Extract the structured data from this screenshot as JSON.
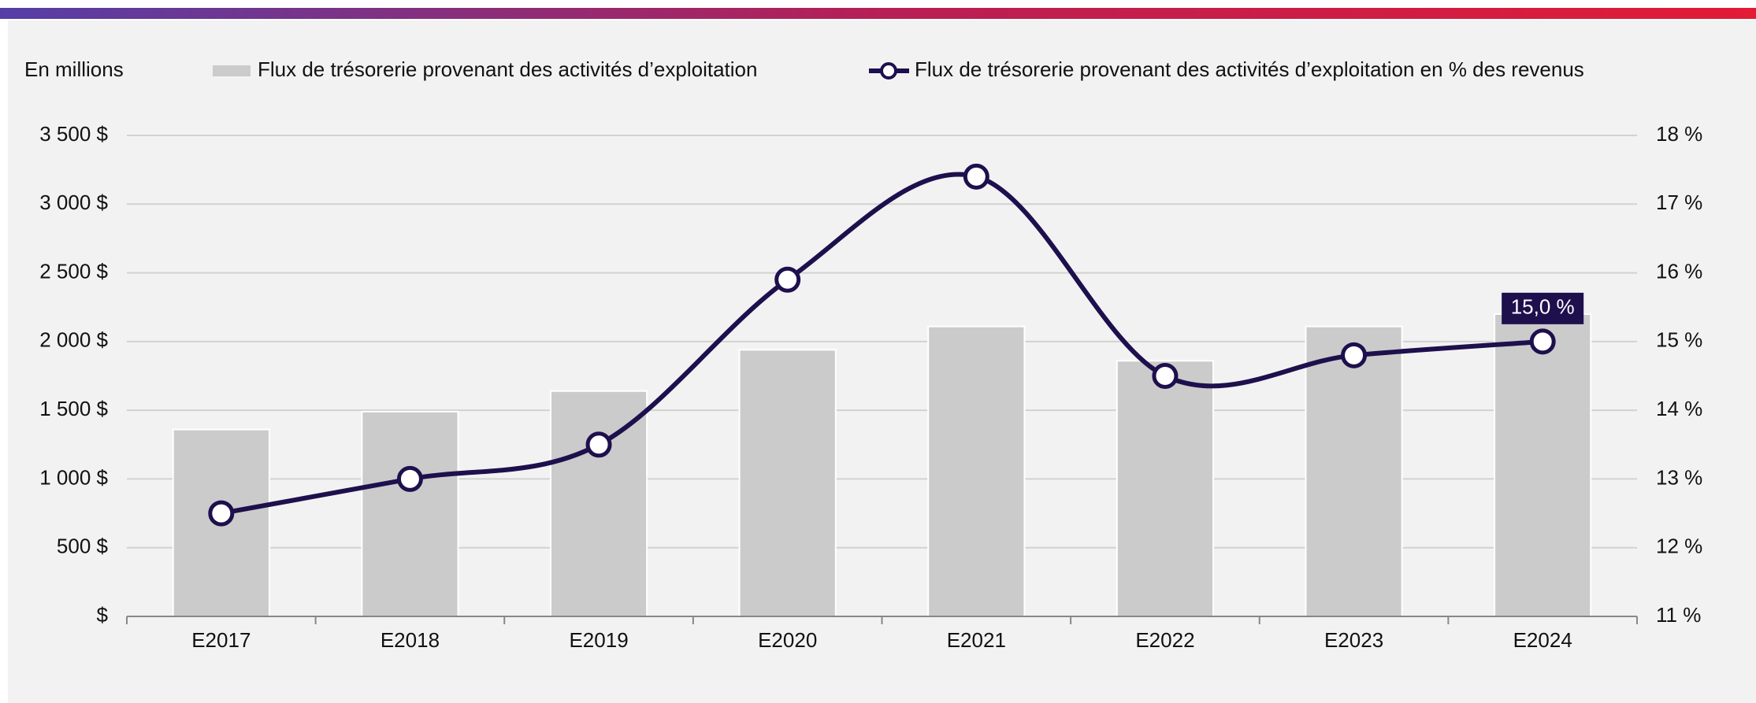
{
  "chart_data": {
    "type": "bar_line",
    "y_label": "En millions",
    "categories": [
      "E2017",
      "E2018",
      "E2019",
      "E2020",
      "E2021",
      "E2022",
      "E2023",
      "E2024"
    ],
    "series": [
      {
        "name": "Flux de trésorerie provenant des activités d’exploitation",
        "type": "bar",
        "color": "#cbcbcb",
        "values": [
          1360,
          1490,
          1640,
          1940,
          2110,
          1860,
          2110,
          2200
        ]
      },
      {
        "name": "Flux de trésorerie provenant des activités d’exploitation en % des revenus",
        "type": "line",
        "axis": "y2",
        "color": "#1e0f4d",
        "values": [
          12.5,
          13.0,
          13.5,
          15.9,
          17.4,
          14.5,
          14.8,
          15.0
        ],
        "value_labels": [
          null,
          null,
          null,
          null,
          null,
          null,
          null,
          "15,0 %"
        ]
      }
    ],
    "ylim": [
      0,
      3500
    ],
    "yticks": [
      {
        "value": 0,
        "label": "$"
      },
      {
        "value": 500,
        "label": "500 $"
      },
      {
        "value": 1000,
        "label": "1 000 $"
      },
      {
        "value": 1500,
        "label": "1 500 $"
      },
      {
        "value": 2000,
        "label": "2 000 $"
      },
      {
        "value": 2500,
        "label": "2 500 $"
      },
      {
        "value": 3000,
        "label": "3 000 $"
      },
      {
        "value": 3500,
        "label": "3 500 $"
      }
    ],
    "y2lim": [
      11,
      18
    ],
    "y2ticks": [
      {
        "value": 11,
        "label": "11 %"
      },
      {
        "value": 12,
        "label": "12 %"
      },
      {
        "value": 13,
        "label": "13 %"
      },
      {
        "value": 14,
        "label": "14 %"
      },
      {
        "value": 15,
        "label": "15 %"
      },
      {
        "value": 16,
        "label": "16 %"
      },
      {
        "value": 17,
        "label": "17 %"
      },
      {
        "value": 18,
        "label": "18 %"
      }
    ],
    "grid": true
  }
}
